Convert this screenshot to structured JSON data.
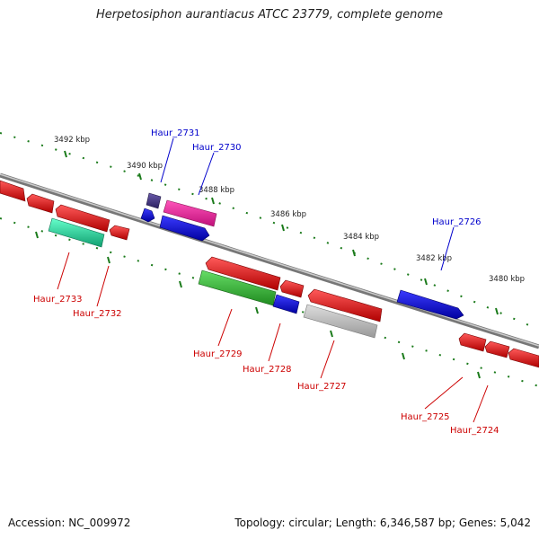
{
  "title": "Herpetosiphon aurantiacus ATCC 23779, complete genome",
  "footer": {
    "accession": "Accession: NC_009972",
    "info": "Topology: circular; Length: 6,346,587 bp; Genes: 5,042"
  },
  "scale_labels": [
    "3492 kbp",
    "3490 kbp",
    "3488 kbp",
    "3486 kbp",
    "3484 kbp",
    "3482 kbp",
    "3480 kbp"
  ],
  "gene_labels": [
    {
      "text": "Haur_2731",
      "strand": "forward"
    },
    {
      "text": "Haur_2730",
      "strand": "forward"
    },
    {
      "text": "Haur_2726",
      "strand": "forward"
    },
    {
      "text": "Haur_2733",
      "strand": "reverse"
    },
    {
      "text": "Haur_2732",
      "strand": "reverse"
    },
    {
      "text": "Haur_2729",
      "strand": "reverse"
    },
    {
      "text": "Haur_2728",
      "strand": "reverse"
    },
    {
      "text": "Haur_2727",
      "strand": "reverse"
    },
    {
      "text": "Haur_2725",
      "strand": "reverse"
    },
    {
      "text": "Haur_2724",
      "strand": "reverse"
    }
  ],
  "colors": {
    "forward_label": "#0000cc",
    "reverse_label": "#cc0000",
    "backbone": "#888888",
    "tick": "#1a7a1a",
    "gene_red": "#ee0000",
    "gene_blue": "#0000dd",
    "gene_magenta": "#ee1199",
    "gene_purple": "#443388",
    "gene_teal": "#22dd99",
    "gene_green": "#33bb33",
    "gene_gray": "#bbbbbb"
  }
}
